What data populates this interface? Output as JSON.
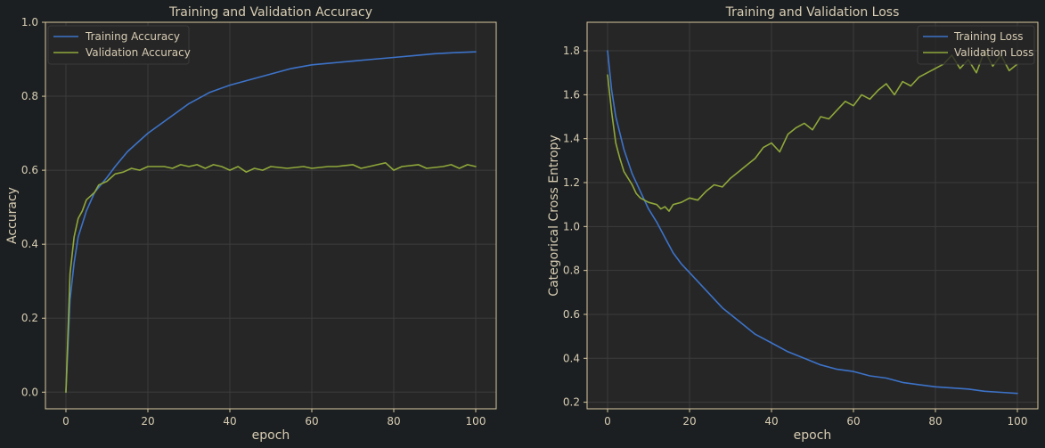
{
  "colors": {
    "background": "#1b1f21",
    "plot_area": "#262626",
    "grid": "#3c3c3c",
    "axes_border": "#d9c8a0",
    "text": "#d8cdb4",
    "training": "#3d73c9",
    "validation": "#8fa83a"
  },
  "chart_data": [
    {
      "type": "line",
      "title": "Training and Validation Accuracy",
      "xlabel": "epoch",
      "ylabel": "Accuracy",
      "xlim": [
        -5,
        105
      ],
      "ylim": [
        -0.045,
        1.0
      ],
      "xticks": [
        0,
        20,
        40,
        60,
        80,
        100
      ],
      "yticks": [
        0.0,
        0.2,
        0.4,
        0.6,
        0.8,
        1.0
      ],
      "xtick_labels": [
        "0",
        "20",
        "40",
        "60",
        "80",
        "100"
      ],
      "ytick_labels": [
        "0.0",
        "0.2",
        "0.4",
        "0.6",
        "0.8",
        "1.0"
      ],
      "grid": true,
      "legend_position": "top-left",
      "series": [
        {
          "name": "Training Accuracy",
          "color": "training",
          "x": [
            0,
            1,
            2,
            3,
            5,
            7,
            10,
            12,
            15,
            18,
            20,
            25,
            30,
            35,
            40,
            45,
            50,
            55,
            60,
            65,
            70,
            75,
            80,
            85,
            90,
            95,
            100
          ],
          "y": [
            0.0,
            0.25,
            0.35,
            0.42,
            0.49,
            0.54,
            0.58,
            0.61,
            0.65,
            0.68,
            0.7,
            0.74,
            0.78,
            0.81,
            0.83,
            0.845,
            0.86,
            0.875,
            0.885,
            0.89,
            0.895,
            0.9,
            0.905,
            0.91,
            0.915,
            0.918,
            0.92
          ]
        },
        {
          "name": "Validation Accuracy",
          "color": "validation",
          "x": [
            0,
            1,
            2,
            3,
            4,
            5,
            6,
            7,
            8,
            10,
            12,
            14,
            16,
            18,
            20,
            24,
            26,
            28,
            30,
            32,
            34,
            36,
            38,
            40,
            42,
            44,
            46,
            48,
            50,
            54,
            58,
            60,
            64,
            66,
            70,
            72,
            74,
            76,
            78,
            80,
            82,
            86,
            88,
            92,
            94,
            96,
            98,
            100
          ],
          "y": [
            0.0,
            0.32,
            0.42,
            0.47,
            0.49,
            0.52,
            0.53,
            0.54,
            0.56,
            0.57,
            0.59,
            0.595,
            0.605,
            0.6,
            0.61,
            0.61,
            0.605,
            0.615,
            0.61,
            0.615,
            0.605,
            0.615,
            0.61,
            0.6,
            0.61,
            0.595,
            0.605,
            0.6,
            0.61,
            0.605,
            0.61,
            0.605,
            0.61,
            0.61,
            0.615,
            0.605,
            0.61,
            0.615,
            0.62,
            0.6,
            0.61,
            0.615,
            0.605,
            0.61,
            0.615,
            0.605,
            0.615,
            0.61
          ]
        }
      ]
    },
    {
      "type": "line",
      "title": "Training and Validation Loss",
      "xlabel": "epoch",
      "ylabel": "Categorical Cross Entropy",
      "xlim": [
        -5,
        105
      ],
      "ylim": [
        0.17,
        1.93
      ],
      "xticks": [
        0,
        20,
        40,
        60,
        80,
        100
      ],
      "yticks": [
        0.2,
        0.4,
        0.6,
        0.8,
        1.0,
        1.2,
        1.4,
        1.6,
        1.8
      ],
      "xtick_labels": [
        "0",
        "20",
        "40",
        "60",
        "80",
        "100"
      ],
      "ytick_labels": [
        "0.2",
        "0.4",
        "0.6",
        "0.8",
        "1.0",
        "1.2",
        "1.4",
        "1.6",
        "1.8"
      ],
      "grid": true,
      "legend_position": "top-right",
      "series": [
        {
          "name": "Training Loss",
          "color": "training",
          "x": [
            0,
            1,
            2,
            4,
            6,
            8,
            10,
            12,
            14,
            16,
            18,
            20,
            24,
            28,
            32,
            36,
            40,
            44,
            48,
            52,
            56,
            60,
            64,
            68,
            72,
            76,
            80,
            84,
            88,
            92,
            96,
            100
          ],
          "y": [
            1.8,
            1.62,
            1.5,
            1.35,
            1.24,
            1.16,
            1.08,
            1.02,
            0.95,
            0.88,
            0.83,
            0.79,
            0.71,
            0.63,
            0.57,
            0.51,
            0.47,
            0.43,
            0.4,
            0.37,
            0.35,
            0.34,
            0.32,
            0.31,
            0.29,
            0.28,
            0.27,
            0.265,
            0.26,
            0.25,
            0.245,
            0.24
          ]
        },
        {
          "name": "Validation Loss",
          "color": "validation",
          "x": [
            0,
            1,
            2,
            3,
            4,
            5,
            6,
            7,
            8,
            10,
            12,
            13,
            14,
            15,
            16,
            18,
            20,
            22,
            24,
            26,
            28,
            30,
            32,
            34,
            36,
            38,
            40,
            42,
            44,
            46,
            48,
            50,
            52,
            54,
            56,
            58,
            60,
            62,
            64,
            66,
            68,
            70,
            72,
            74,
            76,
            78,
            80,
            82,
            84,
            86,
            88,
            90,
            92,
            94,
            96,
            98,
            100
          ],
          "y": [
            1.69,
            1.52,
            1.38,
            1.31,
            1.25,
            1.22,
            1.19,
            1.15,
            1.13,
            1.11,
            1.1,
            1.08,
            1.09,
            1.07,
            1.1,
            1.11,
            1.13,
            1.12,
            1.16,
            1.19,
            1.18,
            1.22,
            1.25,
            1.28,
            1.31,
            1.36,
            1.38,
            1.34,
            1.42,
            1.45,
            1.47,
            1.44,
            1.5,
            1.49,
            1.53,
            1.57,
            1.55,
            1.6,
            1.58,
            1.62,
            1.65,
            1.6,
            1.66,
            1.64,
            1.68,
            1.7,
            1.72,
            1.74,
            1.78,
            1.72,
            1.76,
            1.7,
            1.8,
            1.73,
            1.78,
            1.71,
            1.74
          ]
        }
      ]
    }
  ]
}
